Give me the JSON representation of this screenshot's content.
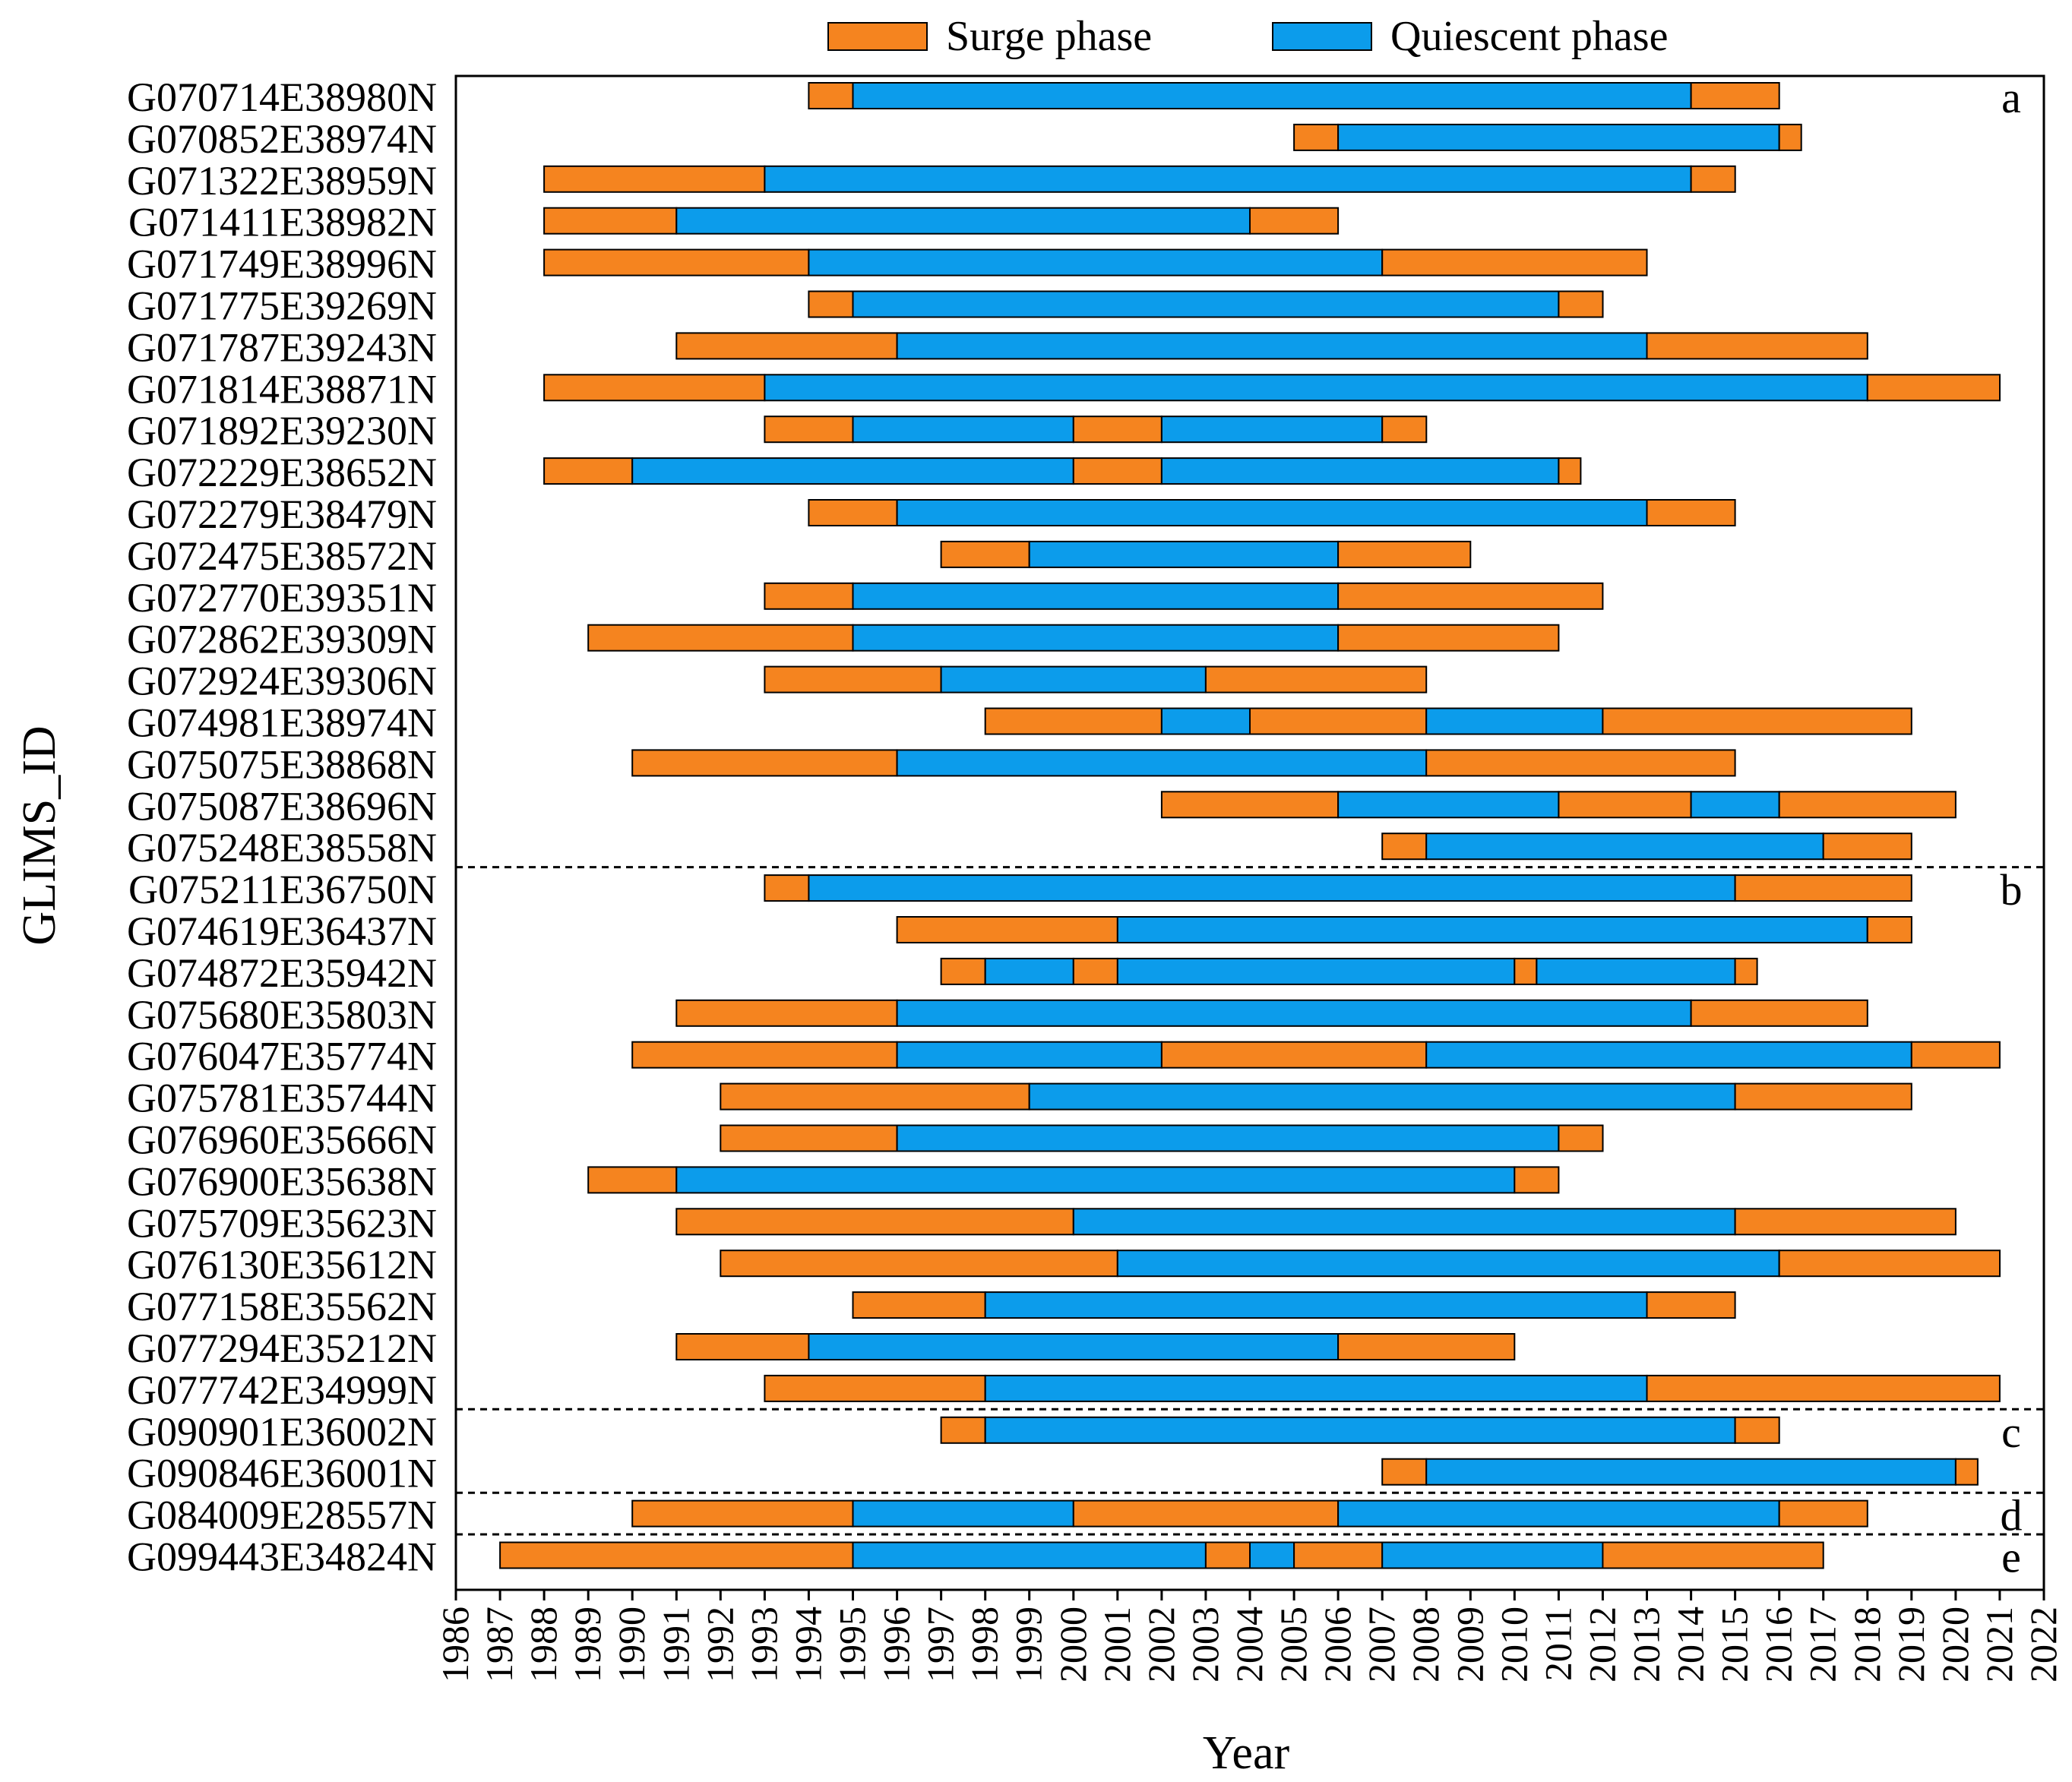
{
  "colors": {
    "surge": "#F5841F",
    "quiescent": "#0C9CEB"
  },
  "chart_data": {
    "type": "gantt",
    "xlabel": "Year",
    "ylabel": "GLIMS_ID",
    "xlim": [
      1986,
      2022
    ],
    "x_ticks": [
      "1986",
      "1987",
      "1988",
      "1989",
      "1990",
      "1991",
      "1992",
      "1993",
      "1994",
      "1995",
      "1996",
      "1997",
      "1998",
      "1999",
      "2000",
      "2001",
      "2002",
      "2003",
      "2004",
      "2005",
      "2006",
      "2007",
      "2008",
      "2009",
      "2010",
      "2011",
      "2012",
      "2013",
      "2014",
      "2015",
      "2016",
      "2017",
      "2018",
      "2019",
      "2020",
      "2021",
      "2022"
    ],
    "legend": {
      "position": "top",
      "surge": "Surge phase",
      "quiescent": "Quiescent phase"
    },
    "groups": [
      {
        "label": "a",
        "from": 0,
        "to": 18
      },
      {
        "label": "b",
        "from": 19,
        "to": 31
      },
      {
        "label": "c",
        "from": 32,
        "to": 33
      },
      {
        "label": "d",
        "from": 34,
        "to": 34
      },
      {
        "label": "e",
        "from": 35,
        "to": 35
      }
    ],
    "glaciers": [
      {
        "id": "G070714E38980N",
        "segments": [
          {
            "phase": "S",
            "start": 1994,
            "end": 1995
          },
          {
            "phase": "Q",
            "start": 1995,
            "end": 2014
          },
          {
            "phase": "S",
            "start": 2014,
            "end": 2016
          }
        ]
      },
      {
        "id": "G070852E38974N",
        "segments": [
          {
            "phase": "S",
            "start": 2005,
            "end": 2006
          },
          {
            "phase": "Q",
            "start": 2006,
            "end": 2016
          },
          {
            "phase": "S",
            "start": 2016,
            "end": 2016.5
          }
        ]
      },
      {
        "id": "G071322E38959N",
        "segments": [
          {
            "phase": "S",
            "start": 1988,
            "end": 1993
          },
          {
            "phase": "Q",
            "start": 1993,
            "end": 2014
          },
          {
            "phase": "S",
            "start": 2014,
            "end": 2015
          }
        ]
      },
      {
        "id": "G071411E38982N",
        "segments": [
          {
            "phase": "S",
            "start": 1988,
            "end": 1991
          },
          {
            "phase": "Q",
            "start": 1991,
            "end": 2004
          },
          {
            "phase": "S",
            "start": 2004,
            "end": 2006
          }
        ]
      },
      {
        "id": "G071749E38996N",
        "segments": [
          {
            "phase": "S",
            "start": 1988,
            "end": 1994
          },
          {
            "phase": "Q",
            "start": 1994,
            "end": 2007
          },
          {
            "phase": "S",
            "start": 2007,
            "end": 2013
          }
        ]
      },
      {
        "id": "G071775E39269N",
        "segments": [
          {
            "phase": "S",
            "start": 1994,
            "end": 1995
          },
          {
            "phase": "Q",
            "start": 1995,
            "end": 2011
          },
          {
            "phase": "S",
            "start": 2011,
            "end": 2012
          }
        ]
      },
      {
        "id": "G071787E39243N",
        "segments": [
          {
            "phase": "S",
            "start": 1991,
            "end": 1996
          },
          {
            "phase": "Q",
            "start": 1996,
            "end": 2013
          },
          {
            "phase": "S",
            "start": 2013,
            "end": 2018
          }
        ]
      },
      {
        "id": "G071814E38871N",
        "segments": [
          {
            "phase": "S",
            "start": 1988,
            "end": 1993
          },
          {
            "phase": "Q",
            "start": 1993,
            "end": 2018
          },
          {
            "phase": "S",
            "start": 2018,
            "end": 2021
          }
        ]
      },
      {
        "id": "G071892E39230N",
        "segments": [
          {
            "phase": "S",
            "start": 1993,
            "end": 1995
          },
          {
            "phase": "Q",
            "start": 1995,
            "end": 2000
          },
          {
            "phase": "S",
            "start": 2000,
            "end": 2002
          },
          {
            "phase": "Q",
            "start": 2002,
            "end": 2007
          },
          {
            "phase": "S",
            "start": 2007,
            "end": 2008
          }
        ]
      },
      {
        "id": "G072229E38652N",
        "segments": [
          {
            "phase": "S",
            "start": 1988,
            "end": 1990
          },
          {
            "phase": "Q",
            "start": 1990,
            "end": 2000
          },
          {
            "phase": "S",
            "start": 2000,
            "end": 2002
          },
          {
            "phase": "Q",
            "start": 2002,
            "end": 2011
          },
          {
            "phase": "S",
            "start": 2011,
            "end": 2011.5
          }
        ]
      },
      {
        "id": "G072279E38479N",
        "segments": [
          {
            "phase": "S",
            "start": 1994,
            "end": 1996
          },
          {
            "phase": "Q",
            "start": 1996,
            "end": 2013
          },
          {
            "phase": "S",
            "start": 2013,
            "end": 2015
          }
        ]
      },
      {
        "id": "G072475E38572N",
        "segments": [
          {
            "phase": "S",
            "start": 1997,
            "end": 1999
          },
          {
            "phase": "Q",
            "start": 1999,
            "end": 2006
          },
          {
            "phase": "S",
            "start": 2006,
            "end": 2009
          }
        ]
      },
      {
        "id": "G072770E39351N",
        "segments": [
          {
            "phase": "S",
            "start": 1993,
            "end": 1995
          },
          {
            "phase": "Q",
            "start": 1995,
            "end": 2006
          },
          {
            "phase": "S",
            "start": 2006,
            "end": 2012
          }
        ]
      },
      {
        "id": "G072862E39309N",
        "segments": [
          {
            "phase": "S",
            "start": 1989,
            "end": 1995
          },
          {
            "phase": "Q",
            "start": 1995,
            "end": 2006
          },
          {
            "phase": "S",
            "start": 2006,
            "end": 2011
          }
        ]
      },
      {
        "id": "G072924E39306N",
        "segments": [
          {
            "phase": "S",
            "start": 1993,
            "end": 1997
          },
          {
            "phase": "Q",
            "start": 1997,
            "end": 2003
          },
          {
            "phase": "S",
            "start": 2003,
            "end": 2008
          }
        ]
      },
      {
        "id": "G074981E38974N",
        "segments": [
          {
            "phase": "S",
            "start": 1998,
            "end": 2002
          },
          {
            "phase": "Q",
            "start": 2002,
            "end": 2004
          },
          {
            "phase": "S",
            "start": 2004,
            "end": 2008
          },
          {
            "phase": "Q",
            "start": 2008,
            "end": 2012
          },
          {
            "phase": "S",
            "start": 2012,
            "end": 2019
          }
        ]
      },
      {
        "id": "G075075E38868N",
        "segments": [
          {
            "phase": "S",
            "start": 1990,
            "end": 1996
          },
          {
            "phase": "Q",
            "start": 1996,
            "end": 2008
          },
          {
            "phase": "S",
            "start": 2008,
            "end": 2015
          }
        ]
      },
      {
        "id": "G075087E38696N",
        "segments": [
          {
            "phase": "S",
            "start": 2002,
            "end": 2006
          },
          {
            "phase": "Q",
            "start": 2006,
            "end": 2011
          },
          {
            "phase": "S",
            "start": 2011,
            "end": 2014
          },
          {
            "phase": "Q",
            "start": 2014,
            "end": 2016
          },
          {
            "phase": "S",
            "start": 2016,
            "end": 2020
          }
        ]
      },
      {
        "id": "G075248E38558N",
        "segments": [
          {
            "phase": "S",
            "start": 2007,
            "end": 2008
          },
          {
            "phase": "Q",
            "start": 2008,
            "end": 2017
          },
          {
            "phase": "S",
            "start": 2017,
            "end": 2019
          }
        ]
      },
      {
        "id": "G075211E36750N",
        "segments": [
          {
            "phase": "S",
            "start": 1993,
            "end": 1994
          },
          {
            "phase": "Q",
            "start": 1994,
            "end": 2015
          },
          {
            "phase": "S",
            "start": 2015,
            "end": 2019
          }
        ]
      },
      {
        "id": "G074619E36437N",
        "segments": [
          {
            "phase": "S",
            "start": 1996,
            "end": 2001
          },
          {
            "phase": "Q",
            "start": 2001,
            "end": 2018
          },
          {
            "phase": "S",
            "start": 2018,
            "end": 2019
          }
        ]
      },
      {
        "id": "G074872E35942N",
        "segments": [
          {
            "phase": "S",
            "start": 1997,
            "end": 1998
          },
          {
            "phase": "Q",
            "start": 1998,
            "end": 2000
          },
          {
            "phase": "S",
            "start": 2000,
            "end": 2001
          },
          {
            "phase": "Q",
            "start": 2001,
            "end": 2010
          },
          {
            "phase": "S",
            "start": 2010,
            "end": 2010.5
          },
          {
            "phase": "Q",
            "start": 2010.5,
            "end": 2015
          },
          {
            "phase": "S",
            "start": 2015,
            "end": 2015.5
          }
        ]
      },
      {
        "id": "G075680E35803N",
        "segments": [
          {
            "phase": "S",
            "start": 1991,
            "end": 1996
          },
          {
            "phase": "Q",
            "start": 1996,
            "end": 2014
          },
          {
            "phase": "S",
            "start": 2014,
            "end": 2018
          }
        ]
      },
      {
        "id": "G076047E35774N",
        "segments": [
          {
            "phase": "S",
            "start": 1990,
            "end": 1996
          },
          {
            "phase": "Q",
            "start": 1996,
            "end": 2002
          },
          {
            "phase": "S",
            "start": 2002,
            "end": 2008
          },
          {
            "phase": "Q",
            "start": 2008,
            "end": 2019
          },
          {
            "phase": "S",
            "start": 2019,
            "end": 2021
          }
        ]
      },
      {
        "id": "G075781E35744N",
        "segments": [
          {
            "phase": "S",
            "start": 1992,
            "end": 1999
          },
          {
            "phase": "Q",
            "start": 1999,
            "end": 2015
          },
          {
            "phase": "S",
            "start": 2015,
            "end": 2019
          }
        ]
      },
      {
        "id": "G076960E35666N",
        "segments": [
          {
            "phase": "S",
            "start": 1992,
            "end": 1996
          },
          {
            "phase": "Q",
            "start": 1996,
            "end": 2011
          },
          {
            "phase": "S",
            "start": 2011,
            "end": 2012
          }
        ]
      },
      {
        "id": "G076900E35638N",
        "segments": [
          {
            "phase": "S",
            "start": 1989,
            "end": 1991
          },
          {
            "phase": "Q",
            "start": 1991,
            "end": 2010
          },
          {
            "phase": "S",
            "start": 2010,
            "end": 2011
          }
        ]
      },
      {
        "id": "G075709E35623N",
        "segments": [
          {
            "phase": "S",
            "start": 1991,
            "end": 2000
          },
          {
            "phase": "Q",
            "start": 2000,
            "end": 2015
          },
          {
            "phase": "S",
            "start": 2015,
            "end": 2020
          }
        ]
      },
      {
        "id": "G076130E35612N",
        "segments": [
          {
            "phase": "S",
            "start": 1992,
            "end": 2001
          },
          {
            "phase": "Q",
            "start": 2001,
            "end": 2016
          },
          {
            "phase": "S",
            "start": 2016,
            "end": 2021
          }
        ]
      },
      {
        "id": "G077158E35562N",
        "segments": [
          {
            "phase": "S",
            "start": 1995,
            "end": 1998
          },
          {
            "phase": "Q",
            "start": 1998,
            "end": 2013
          },
          {
            "phase": "S",
            "start": 2013,
            "end": 2015
          }
        ]
      },
      {
        "id": "G077294E35212N",
        "segments": [
          {
            "phase": "S",
            "start": 1991,
            "end": 1994
          },
          {
            "phase": "Q",
            "start": 1994,
            "end": 2006
          },
          {
            "phase": "S",
            "start": 2006,
            "end": 2010
          }
        ]
      },
      {
        "id": "G077742E34999N",
        "segments": [
          {
            "phase": "S",
            "start": 1993,
            "end": 1998
          },
          {
            "phase": "Q",
            "start": 1998,
            "end": 2013
          },
          {
            "phase": "S",
            "start": 2013,
            "end": 2021
          }
        ]
      },
      {
        "id": "G090901E36002N",
        "segments": [
          {
            "phase": "S",
            "start": 1997,
            "end": 1998
          },
          {
            "phase": "Q",
            "start": 1998,
            "end": 2015
          },
          {
            "phase": "S",
            "start": 2015,
            "end": 2016
          }
        ]
      },
      {
        "id": "G090846E36001N",
        "segments": [
          {
            "phase": "S",
            "start": 2007,
            "end": 2008
          },
          {
            "phase": "Q",
            "start": 2008,
            "end": 2020
          },
          {
            "phase": "S",
            "start": 2020,
            "end": 2020.5
          }
        ]
      },
      {
        "id": "G084009E28557N",
        "segments": [
          {
            "phase": "S",
            "start": 1990,
            "end": 1995
          },
          {
            "phase": "Q",
            "start": 1995,
            "end": 2000
          },
          {
            "phase": "S",
            "start": 2000,
            "end": 2006
          },
          {
            "phase": "Q",
            "start": 2006,
            "end": 2016
          },
          {
            "phase": "S",
            "start": 2016,
            "end": 2018
          }
        ]
      },
      {
        "id": "G099443E34824N",
        "segments": [
          {
            "phase": "S",
            "start": 1987,
            "end": 1995
          },
          {
            "phase": "Q",
            "start": 1995,
            "end": 2003
          },
          {
            "phase": "S",
            "start": 2003,
            "end": 2004
          },
          {
            "phase": "Q",
            "start": 2004,
            "end": 2005
          },
          {
            "phase": "S",
            "start": 2005,
            "end": 2007
          },
          {
            "phase": "Q",
            "start": 2007,
            "end": 2012
          },
          {
            "phase": "S",
            "start": 2012,
            "end": 2017
          }
        ]
      }
    ]
  }
}
